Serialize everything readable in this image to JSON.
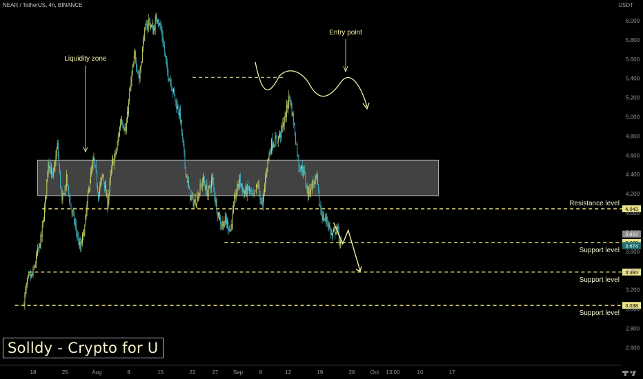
{
  "header": {
    "symbol_text": "NEAR / TetherUS, 4h, BINANCE",
    "currency": "USDT"
  },
  "brand": {
    "label": "Solldy - Crypto for U"
  },
  "colors": {
    "background": "#000000",
    "candle_up": "#c9d86a",
    "candle_down": "#3fb7c6",
    "annotation": "#f4f0a8",
    "level_line": "#e9e27a",
    "zone_fill": "rgba(255,255,255,0.26)",
    "zone_border": "#d8d8d8"
  },
  "chart_data": {
    "type": "candlestick",
    "symbol": "NEAR / TetherUS",
    "timeframe": "4h",
    "exchange": "BINANCE",
    "ylim": [
      2.5,
      6.15
    ],
    "y_ticks": [
      "6.000",
      "5.800",
      "5.600",
      "5.400",
      "5.200",
      "5.000",
      "4.800",
      "4.600",
      "4.400",
      "4.200",
      "4.000",
      "3.800",
      "3.600",
      "3.400",
      "3.200",
      "3.000",
      "2.800",
      "2.600"
    ],
    "x_ticks": [
      {
        "label": "18",
        "day": 0
      },
      {
        "label": "25",
        "day": 7
      },
      {
        "label": "Aug",
        "day": 14
      },
      {
        "label": "8",
        "day": 21
      },
      {
        "label": "15",
        "day": 28
      },
      {
        "label": "22",
        "day": 35
      },
      {
        "label": "27",
        "day": 40
      },
      {
        "label": "Sep",
        "day": 45
      },
      {
        "label": "6",
        "day": 50
      },
      {
        "label": "12",
        "day": 56
      },
      {
        "label": "19",
        "day": 63
      },
      {
        "label": "26",
        "day": 70
      },
      {
        "label": "Oct",
        "day": 75
      },
      {
        "label": "13:00",
        "day": 79
      },
      {
        "label": "10",
        "day": 85
      },
      {
        "label": "17",
        "day": 92
      }
    ],
    "price_path": [
      [
        -2.0,
        3.05
      ],
      [
        -1.0,
        3.3
      ],
      [
        0.0,
        3.35
      ],
      [
        1.0,
        3.55
      ],
      [
        2.0,
        3.75
      ],
      [
        2.8,
        4.1
      ],
      [
        3.5,
        4.55
      ],
      [
        4.5,
        4.35
      ],
      [
        5.5,
        4.7
      ],
      [
        6.5,
        4.1
      ],
      [
        7.5,
        4.35
      ],
      [
        8.5,
        4.05
      ],
      [
        9.5,
        3.85
      ],
      [
        10.5,
        3.62
      ],
      [
        11.5,
        3.85
      ],
      [
        12.5,
        4.3
      ],
      [
        13.5,
        4.55
      ],
      [
        14.5,
        4.2
      ],
      [
        15.5,
        4.4
      ],
      [
        16.5,
        4.1
      ],
      [
        17.5,
        4.5
      ],
      [
        18.5,
        4.65
      ],
      [
        19.5,
        5.0
      ],
      [
        20.5,
        4.85
      ],
      [
        21.5,
        5.3
      ],
      [
        22.5,
        5.65
      ],
      [
        23.5,
        5.4
      ],
      [
        24.5,
        5.85
      ],
      [
        25.5,
        6.0
      ],
      [
        26.5,
        5.9
      ],
      [
        27.5,
        6.05
      ],
      [
        28.5,
        5.85
      ],
      [
        29.5,
        5.5
      ],
      [
        30.5,
        5.35
      ],
      [
        31.5,
        5.15
      ],
      [
        32.5,
        5.0
      ],
      [
        33.5,
        4.5
      ],
      [
        34.5,
        4.2
      ],
      [
        35.5,
        4.1
      ],
      [
        36.5,
        4.2
      ],
      [
        37.5,
        4.35
      ],
      [
        38.5,
        4.2
      ],
      [
        39.5,
        4.35
      ],
      [
        40.5,
        4.05
      ],
      [
        41.5,
        3.88
      ],
      [
        42.5,
        3.92
      ],
      [
        43.5,
        3.82
      ],
      [
        44.5,
        4.15
      ],
      [
        45.5,
        4.35
      ],
      [
        46.5,
        4.2
      ],
      [
        47.5,
        4.25
      ],
      [
        48.5,
        4.15
      ],
      [
        49.5,
        4.3
      ],
      [
        50.5,
        4.05
      ],
      [
        51.5,
        4.5
      ],
      [
        52.5,
        4.72
      ],
      [
        53.5,
        4.75
      ],
      [
        54.5,
        4.82
      ],
      [
        55.5,
        5.0
      ],
      [
        56.5,
        5.22
      ],
      [
        57.5,
        4.9
      ],
      [
        58.5,
        4.5
      ],
      [
        59.5,
        4.45
      ],
      [
        60.5,
        4.2
      ],
      [
        61.5,
        4.3
      ],
      [
        62.5,
        4.35
      ],
      [
        63.0,
        4.1
      ],
      [
        63.8,
        3.95
      ],
      [
        64.8,
        3.92
      ],
      [
        65.8,
        3.75
      ],
      [
        66.8,
        3.85
      ],
      [
        67.8,
        3.65
      ]
    ],
    "zones": [
      {
        "label": "Liquidity zone",
        "y_range": [
          4.18,
          4.55
        ],
        "day_range": [
          1.0,
          89.0
        ]
      }
    ],
    "levels": [
      {
        "label": "Resistance level",
        "value": "4.043",
        "y": 4.043,
        "day_start": 2.0
      },
      {
        "label": "Support level",
        "value": "3.692",
        "y": 3.692,
        "day_start": 42.0
      },
      {
        "label": "Support level",
        "value": "3.385",
        "y": 3.385,
        "day_start": -1.0
      },
      {
        "label": "Support level",
        "value": "3.038",
        "y": 3.038,
        "day_start": -4.0
      }
    ],
    "annotations": [
      {
        "text": "Liquidity zone",
        "arrow_to_day": 11.5,
        "arrow_to_y": 4.62
      },
      {
        "text": "Entry point",
        "dashed_y": 5.41,
        "day_range": [
          35.0,
          55.0
        ]
      }
    ],
    "price_tags": [
      {
        "value": "3.892",
        "y": 3.78,
        "color": "#8a8a8a"
      },
      {
        "value": "3.674",
        "y": 3.66,
        "color": "#1f6f72"
      }
    ],
    "projection": [
      [
        66.0,
        3.9
      ],
      [
        68.0,
        3.68
      ],
      [
        69.2,
        3.82
      ],
      [
        71.8,
        3.4
      ]
    ],
    "grid": false
  }
}
